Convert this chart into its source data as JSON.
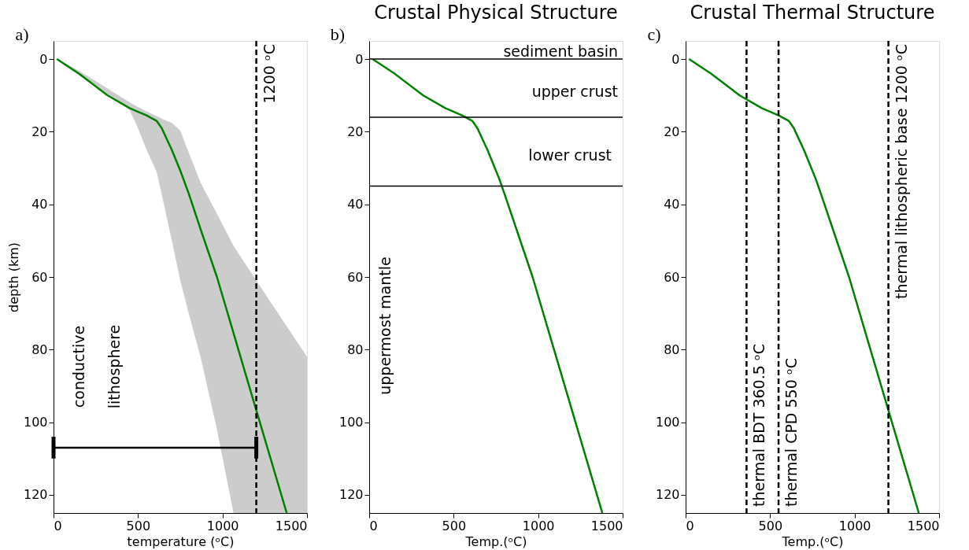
{
  "chart_data": [
    {
      "type": "line",
      "xlabel": "temperature (ᵒC)",
      "ylabel": "depth (km)",
      "xlim": [
        0,
        1500
      ],
      "xticks": [
        0,
        500,
        1000,
        1500
      ],
      "ylim": [
        125,
        -5
      ],
      "yticks": [
        0,
        20,
        40,
        60,
        80,
        100,
        120
      ],
      "grid": false,
      "marker": "none",
      "series": [
        {
          "color": "#008000",
          "x": [
            20,
            150,
            320,
            450,
            495,
            550,
            610,
            640,
            700,
            750,
            800,
            870,
            967,
            1065,
            1094,
            1200,
            1221,
            1380,
            1500
          ],
          "values": [
            0,
            4,
            10,
            13.5,
            14.4,
            15.5,
            17,
            19,
            25,
            30.7,
            37,
            46.8,
            60,
            75.4,
            80,
            96.7,
            100,
            125,
            null
          ],
          "lower": [
            0,
            3.2,
            8.1,
            11.9,
            13.1,
            14.4,
            15.7,
            16.4,
            17.6,
            19.7,
            25.7,
            34,
            42.6,
            51.4,
            53.5,
            61,
            62.5,
            73.6,
            82
          ],
          "upper": [
            0.3,
            4.4,
            9.7,
            14,
            18.5,
            24.9,
            31,
            37.2,
            49.9,
            61,
            70,
            82,
            102,
            125,
            125,
            125,
            125,
            125,
            125
          ]
        },
        {
          "color": "#000000",
          "x": [
            0,
            1200
          ],
          "values": [
            107,
            107
          ],
          "errors": [
            3,
            3
          ]
        }
      ],
      "ref_lines": [
        {
          "axis": "x",
          "value": 1200,
          "label": "1200 ᵒC",
          "line_style": "dashed",
          "color": "#000000"
        }
      ],
      "annotations": [
        "a)",
        "conductive",
        "lithosphere"
      ]
    },
    {
      "type": "line",
      "title": "Crustal Physical Structure",
      "xlabel": "Temp.(ᵒC)",
      "xlim": [
        0,
        1500
      ],
      "xticks": [
        0,
        500,
        1000,
        1500
      ],
      "ylim": [
        125,
        -5
      ],
      "yticks": [
        0,
        20,
        40,
        60,
        80,
        100,
        120
      ],
      "grid": false,
      "marker": "none",
      "series": [
        {
          "color": "#008000",
          "x": [
            20,
            150,
            320,
            450,
            550,
            610,
            640,
            700,
            770,
            800,
            967,
            1094,
            1221,
            1380
          ],
          "values": [
            0,
            4,
            10,
            13.5,
            15.5,
            17,
            19,
            25,
            33,
            37,
            60,
            80,
            100,
            125
          ]
        }
      ],
      "ref_lines": [
        {
          "axis": "y",
          "value": 0,
          "line_style": "solid",
          "color": "#000000"
        },
        {
          "axis": "y",
          "value": 16,
          "line_style": "solid",
          "color": "#000000"
        },
        {
          "axis": "y",
          "value": 35,
          "line_style": "solid",
          "color": "#000000"
        }
      ],
      "annotations": [
        "b)",
        "sediment basin",
        "upper crust",
        "lower crust",
        "uppermost mantle"
      ]
    },
    {
      "type": "line",
      "title": "Crustal Thermal Structure",
      "xlabel": "Temp.(ᵒC)",
      "xlim": [
        0,
        1500
      ],
      "xticks": [
        0,
        500,
        1000,
        1500
      ],
      "ylim": [
        125,
        -5
      ],
      "yticks": [
        0,
        20,
        40,
        60,
        80,
        100,
        120
      ],
      "grid": false,
      "marker": "none",
      "series": [
        {
          "color": "#008000",
          "x": [
            20,
            150,
            320,
            450,
            550,
            610,
            640,
            700,
            770,
            800,
            967,
            1094,
            1221,
            1380
          ],
          "values": [
            0,
            4,
            10,
            13.5,
            15.5,
            17,
            19,
            25,
            33,
            37,
            60,
            80,
            100,
            125
          ]
        }
      ],
      "ref_lines": [
        {
          "axis": "x",
          "value": 360.5,
          "label": "thermal BDT 360.5 ᵒC",
          "line_style": "dashed",
          "color": "#000000"
        },
        {
          "axis": "x",
          "value": 550,
          "label": "thermal CPD 550 ᵒC",
          "line_style": "dashed",
          "color": "#000000"
        },
        {
          "axis": "x",
          "value": 1200,
          "label": "thermal lithospheric base 1200 ᵒC",
          "line_style": "dashed",
          "color": "#000000"
        }
      ],
      "annotations": [
        "c)"
      ]
    }
  ]
}
